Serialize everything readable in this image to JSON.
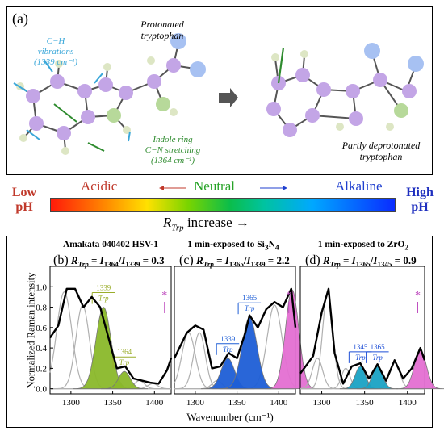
{
  "panel_a": {
    "label": "(a)",
    "protonated_line1": "Protonated",
    "protonated_line2": "tryptophan",
    "ch_line1": "C−H",
    "ch_line2": "vibrations",
    "ch_line3": "(1339 cm⁻¹)",
    "indole_line1": "Indole ring",
    "indole_line2": "C−N stretching",
    "indole_line3": "(1364 cm⁻¹)",
    "deprot_line1": "Partly deprotonated",
    "deprot_line2": "tryptophan",
    "colors": {
      "carbon": "#c3a5e6",
      "nitrogen": "#b7d99a",
      "hydrogen": "#dde6c4",
      "oxygen": "#a7c1f2",
      "ch_arrow": "#3aa7d9",
      "cn_arrow": "#2e8b2e"
    }
  },
  "ph_scale": {
    "low_line1": "Low",
    "low_line2": "pH",
    "high_line1": "High",
    "high_line2": "pH",
    "acidic": "Acidic",
    "neutral": "Neutral",
    "alkaline": "Alkaline",
    "r_symbol": "R",
    "r_sub": "Trp",
    "r_increase": " increase →",
    "colors": {
      "acidic": "#c0392b",
      "neutral": "#27a327",
      "alkaline": "#1f3fcf",
      "low": "#c0392b",
      "high": "#1f2fbf"
    }
  },
  "chart_data": [
    {
      "type": "line",
      "panel_label": "(b)",
      "title": "Amakata 040402 HSV-1",
      "ratio_prefix": "I",
      "ratio_num_sub": "1364",
      "ratio_den_sub": "1339",
      "ratio_value": "0.3",
      "xlim": [
        1275,
        1420
      ],
      "ylim": [
        -0.05,
        1.2
      ],
      "x": [
        1275,
        1285,
        1295,
        1305,
        1315,
        1325,
        1335,
        1345,
        1355,
        1365,
        1375,
        1385,
        1395,
        1405,
        1415,
        1420
      ],
      "y": [
        0.5,
        0.62,
        0.98,
        0.98,
        0.8,
        0.9,
        0.8,
        0.5,
        0.2,
        0.22,
        0.1,
        0.08,
        0.06,
        0.05,
        0.18,
        0.3
      ],
      "highlighted_bands": [
        {
          "center": 1339,
          "height": 0.8,
          "width": 9,
          "color": "#8ab82a",
          "label_top": "1339",
          "label_bottom": "Trp",
          "label_color": "#9aad2a"
        },
        {
          "center": 1364,
          "height": 0.17,
          "width": 7,
          "color": "#8ab82a",
          "label_top": "1364",
          "label_bottom": "Trp",
          "label_color": "#9aad2a"
        }
      ],
      "other_bands": [
        [
          1292,
          0.95,
          9
        ],
        [
          1314,
          0.82,
          8
        ],
        [
          1382,
          0.08,
          6
        ],
        [
          1398,
          0.05,
          6
        ]
      ],
      "xticks": [
        1300,
        1350,
        1400
      ],
      "yticks": [
        0.0,
        0.2,
        0.4,
        0.6,
        0.8,
        1.0
      ],
      "marker": "*"
    },
    {
      "type": "line",
      "panel_label": "(c)",
      "title_prefix": "1 min-exposed to Si",
      "title_sub1": "3",
      "title_mid": "N",
      "title_sub2": "4",
      "ratio_prefix": "I",
      "ratio_num_sub": "1365",
      "ratio_den_sub": "1339",
      "ratio_value": "2.2",
      "xlim": [
        1275,
        1420
      ],
      "ylim": [
        -0.05,
        1.2
      ],
      "x": [
        1275,
        1290,
        1300,
        1310,
        1320,
        1330,
        1340,
        1350,
        1360,
        1365,
        1375,
        1385,
        1395,
        1405,
        1415,
        1420
      ],
      "y": [
        0.3,
        0.55,
        0.62,
        0.58,
        0.2,
        0.22,
        0.35,
        0.3,
        0.55,
        0.72,
        0.6,
        0.78,
        0.85,
        0.8,
        0.98,
        0.6
      ],
      "highlighted_bands": [
        {
          "center": 1339,
          "height": 0.3,
          "width": 8,
          "color": "#1e5ed6",
          "label_top": "1339",
          "label_bottom": "Trp",
          "label_color": "#1e5ed6"
        },
        {
          "center": 1365,
          "height": 0.7,
          "width": 9,
          "color": "#1e5ed6",
          "label_top": "1365",
          "label_bottom": "Trp",
          "label_color": "#1e5ed6"
        },
        {
          "center": 1416,
          "height": 0.97,
          "width": 8,
          "color": "#e46fd2",
          "label_top": "",
          "label_bottom": "",
          "label_color": "#e46fd2"
        }
      ],
      "other_bands": [
        [
          1292,
          0.55,
          8
        ],
        [
          1305,
          0.55,
          7
        ],
        [
          1326,
          0.08,
          6
        ],
        [
          1395,
          0.82,
          9
        ]
      ],
      "xticks": [
        1300,
        1350,
        1400
      ],
      "marker": "*"
    },
    {
      "type": "line",
      "panel_label": "(d)",
      "title_prefix": "1 min-exposed to ZrO",
      "title_sub1": "2",
      "ratio_prefix": "I",
      "ratio_num_sub": "1365",
      "ratio_den_sub": "1345",
      "ratio_value": "0.9",
      "xlim": [
        1275,
        1420
      ],
      "ylim": [
        -0.05,
        1.2
      ],
      "x": [
        1275,
        1290,
        1300,
        1308,
        1315,
        1325,
        1335,
        1345,
        1355,
        1365,
        1375,
        1385,
        1395,
        1405,
        1415,
        1420
      ],
      "y": [
        0.15,
        0.32,
        0.75,
        0.98,
        0.35,
        0.05,
        0.22,
        0.25,
        0.1,
        0.24,
        0.08,
        0.28,
        0.1,
        0.2,
        0.4,
        0.28
      ],
      "highlighted_bands": [
        {
          "center": 1345,
          "height": 0.22,
          "width": 6,
          "color": "#19a2c4",
          "label_top": "1345",
          "label_bottom": "Trp",
          "label_color": "#1e4fd6"
        },
        {
          "center": 1365,
          "height": 0.22,
          "width": 6,
          "color": "#19a2c4",
          "label_top": "1365",
          "label_bottom": "Trp",
          "label_color": "#1e4fd6"
        },
        {
          "center": 1415,
          "height": 0.38,
          "width": 7,
          "color": "#e46fd2",
          "label_top": "",
          "label_bottom": "",
          "label_color": "#e46fd2"
        }
      ],
      "other_bands": [
        [
          1295,
          0.3,
          6
        ],
        [
          1307,
          0.95,
          6
        ],
        [
          1328,
          0.2,
          5
        ],
        [
          1385,
          0.26,
          6
        ]
      ],
      "xticks": [
        1300,
        1350,
        1400
      ],
      "marker": "*"
    }
  ],
  "axes": {
    "ylabel": "Normalized Raman intensity",
    "xlabel": "Wavenumber (cm⁻¹)"
  }
}
